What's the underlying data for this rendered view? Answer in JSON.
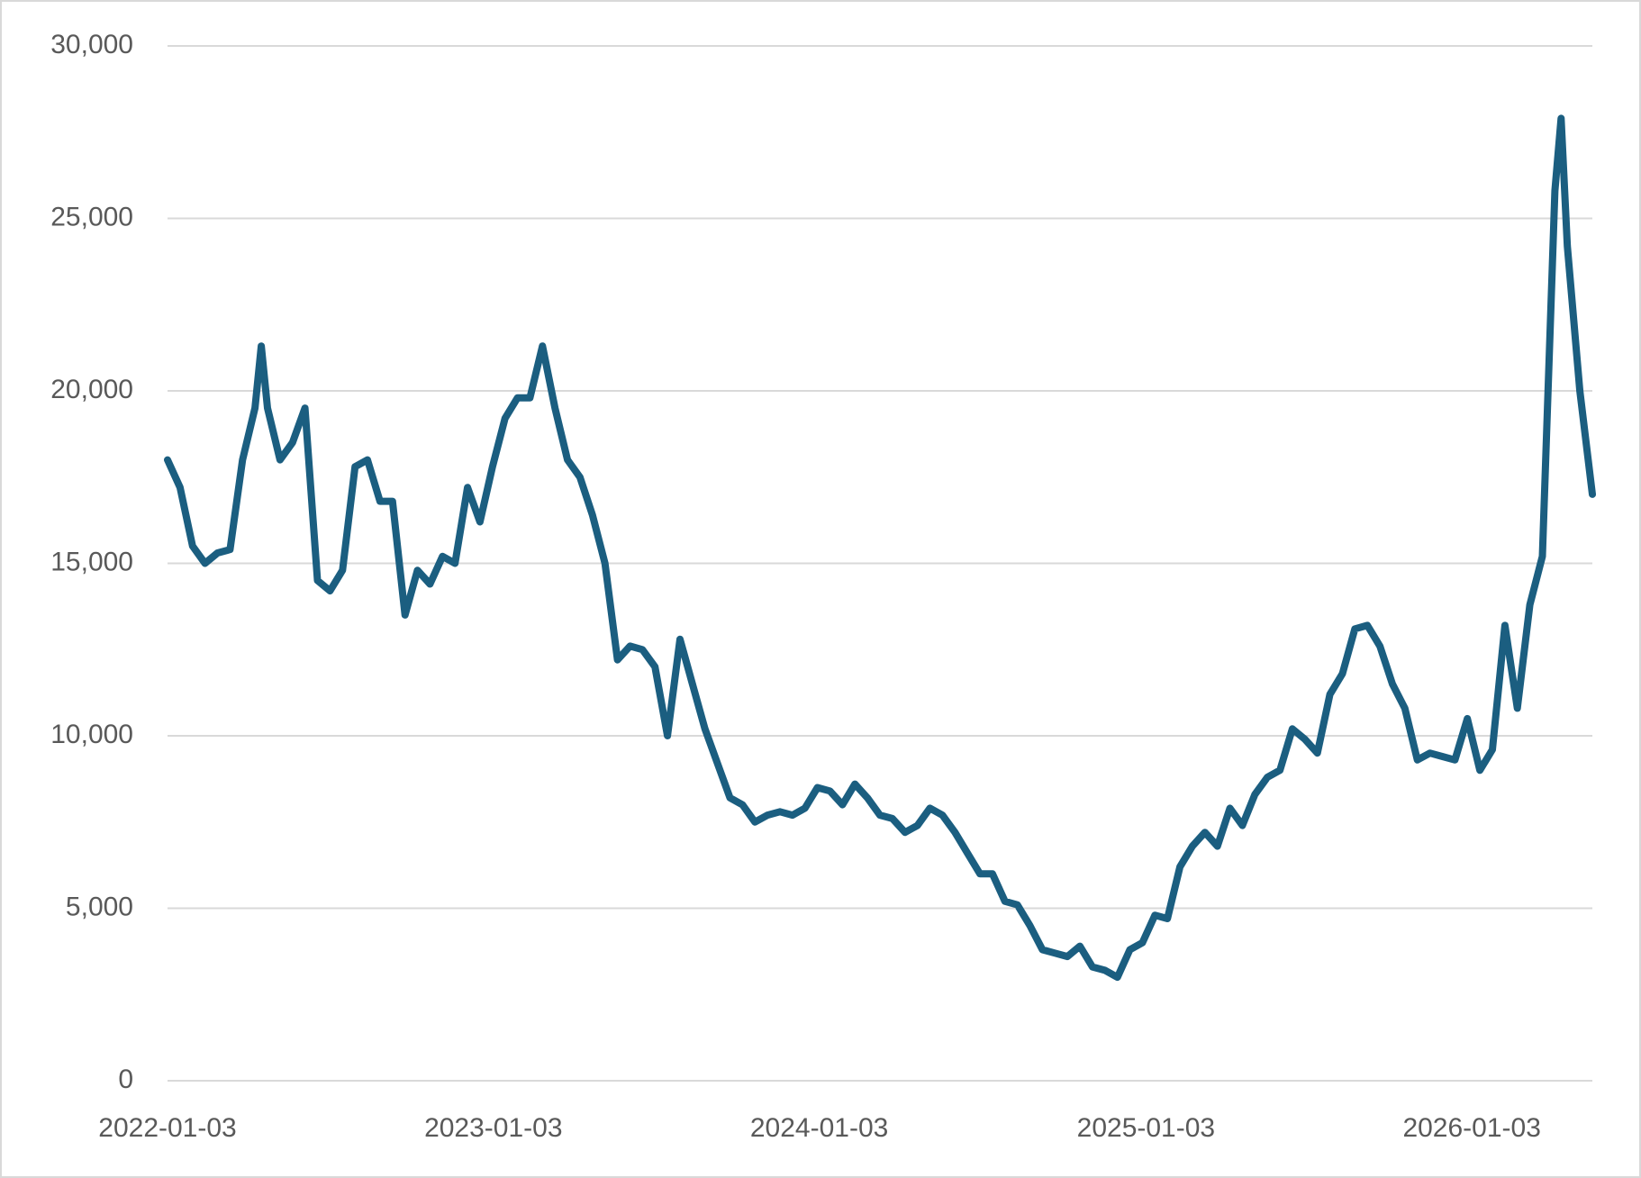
{
  "chart_data": {
    "type": "line",
    "x": [
      "2022-01-03",
      "2022-01-17",
      "2022-01-31",
      "2022-02-14",
      "2022-02-28",
      "2022-03-14",
      "2022-03-28",
      "2022-04-11",
      "2022-04-18",
      "2022-04-25",
      "2022-05-09",
      "2022-05-23",
      "2022-06-06",
      "2022-06-20",
      "2022-07-04",
      "2022-07-18",
      "2022-08-01",
      "2022-08-15",
      "2022-08-29",
      "2022-09-12",
      "2022-09-26",
      "2022-10-10",
      "2022-10-24",
      "2022-11-07",
      "2022-11-21",
      "2022-12-05",
      "2022-12-19",
      "2023-01-02",
      "2023-01-16",
      "2023-01-30",
      "2023-02-13",
      "2023-02-27",
      "2023-03-13",
      "2023-03-27",
      "2023-04-10",
      "2023-04-24",
      "2023-05-08",
      "2023-05-22",
      "2023-06-05",
      "2023-06-19",
      "2023-07-03",
      "2023-07-17",
      "2023-07-31",
      "2023-08-14",
      "2023-08-28",
      "2023-09-11",
      "2023-09-25",
      "2023-10-09",
      "2023-10-23",
      "2023-11-06",
      "2023-11-20",
      "2023-12-04",
      "2023-12-18",
      "2024-01-01",
      "2024-01-15",
      "2024-01-29",
      "2024-02-12",
      "2024-02-26",
      "2024-03-11",
      "2024-03-25",
      "2024-04-08",
      "2024-04-22",
      "2024-05-06",
      "2024-05-20",
      "2024-06-03",
      "2024-06-17",
      "2024-07-01",
      "2024-07-15",
      "2024-07-29",
      "2024-08-12",
      "2024-08-26",
      "2024-09-09",
      "2024-09-23",
      "2024-10-07",
      "2024-10-21",
      "2024-11-04",
      "2024-11-18",
      "2024-12-02",
      "2024-12-16",
      "2024-12-30",
      "2025-01-13",
      "2025-01-27",
      "2025-02-10",
      "2025-02-24",
      "2025-03-10",
      "2025-03-24",
      "2025-04-07",
      "2025-04-21",
      "2025-05-05",
      "2025-05-19",
      "2025-06-02",
      "2025-06-16",
      "2025-06-30",
      "2025-07-14",
      "2025-07-28",
      "2025-08-11",
      "2025-08-25",
      "2025-09-08",
      "2025-09-22",
      "2025-10-06",
      "2025-10-20",
      "2025-11-03",
      "2025-11-17",
      "2025-12-01",
      "2025-12-15",
      "2025-12-29",
      "2026-01-12",
      "2026-01-26",
      "2026-02-09",
      "2026-02-23",
      "2026-03-09",
      "2026-03-23",
      "2026-04-06",
      "2026-04-13",
      "2026-04-20",
      "2026-05-04",
      "2026-05-18"
    ],
    "values": [
      18000,
      17200,
      15500,
      15000,
      15300,
      15400,
      18000,
      19500,
      21300,
      19500,
      18000,
      18500,
      19500,
      14500,
      14200,
      14800,
      17800,
      18000,
      16800,
      16800,
      13500,
      14800,
      14400,
      15200,
      15000,
      17200,
      16200,
      17800,
      19200,
      19800,
      19800,
      21300,
      19500,
      18000,
      17500,
      16400,
      15000,
      12200,
      12600,
      12500,
      12000,
      10000,
      12800,
      11500,
      10200,
      9200,
      8200,
      8000,
      7500,
      7700,
      7800,
      7700,
      7900,
      8500,
      8400,
      8000,
      8600,
      8200,
      7700,
      7600,
      7200,
      7400,
      7900,
      7700,
      7200,
      6600,
      6000,
      6000,
      5200,
      5100,
      4500,
      3800,
      3700,
      3600,
      3900,
      3300,
      3200,
      3000,
      3800,
      4000,
      4800,
      4700,
      6200,
      6800,
      7200,
      6800,
      7900,
      7400,
      8300,
      8800,
      9000,
      10200,
      9900,
      9500,
      11200,
      11800,
      13100,
      13200,
      12600,
      11500,
      10800,
      9300,
      9500,
      9400,
      9300,
      10500,
      9000,
      9600,
      13200,
      10800,
      13800,
      15200,
      25800,
      27900,
      24200,
      20000,
      17000
    ],
    "color": "#1b5e80",
    "xlim": [
      "2022-01-03",
      "2026-05-18"
    ],
    "xticks": [
      "2022-01-03",
      "2023-01-03",
      "2024-01-03",
      "2025-01-03",
      "2026-01-03"
    ],
    "ylim": [
      0,
      30000
    ],
    "yticks": [
      0,
      {
        "value": 5000,
        "label": "5,000"
      },
      {
        "value": 10000,
        "label": "10,000"
      },
      {
        "value": 15000,
        "label": "15,000"
      },
      {
        "value": 20000,
        "label": "20,000"
      },
      {
        "value": 25000,
        "label": "25,000"
      },
      {
        "value": 30000,
        "label": "30,000"
      }
    ],
    "grid": true
  }
}
